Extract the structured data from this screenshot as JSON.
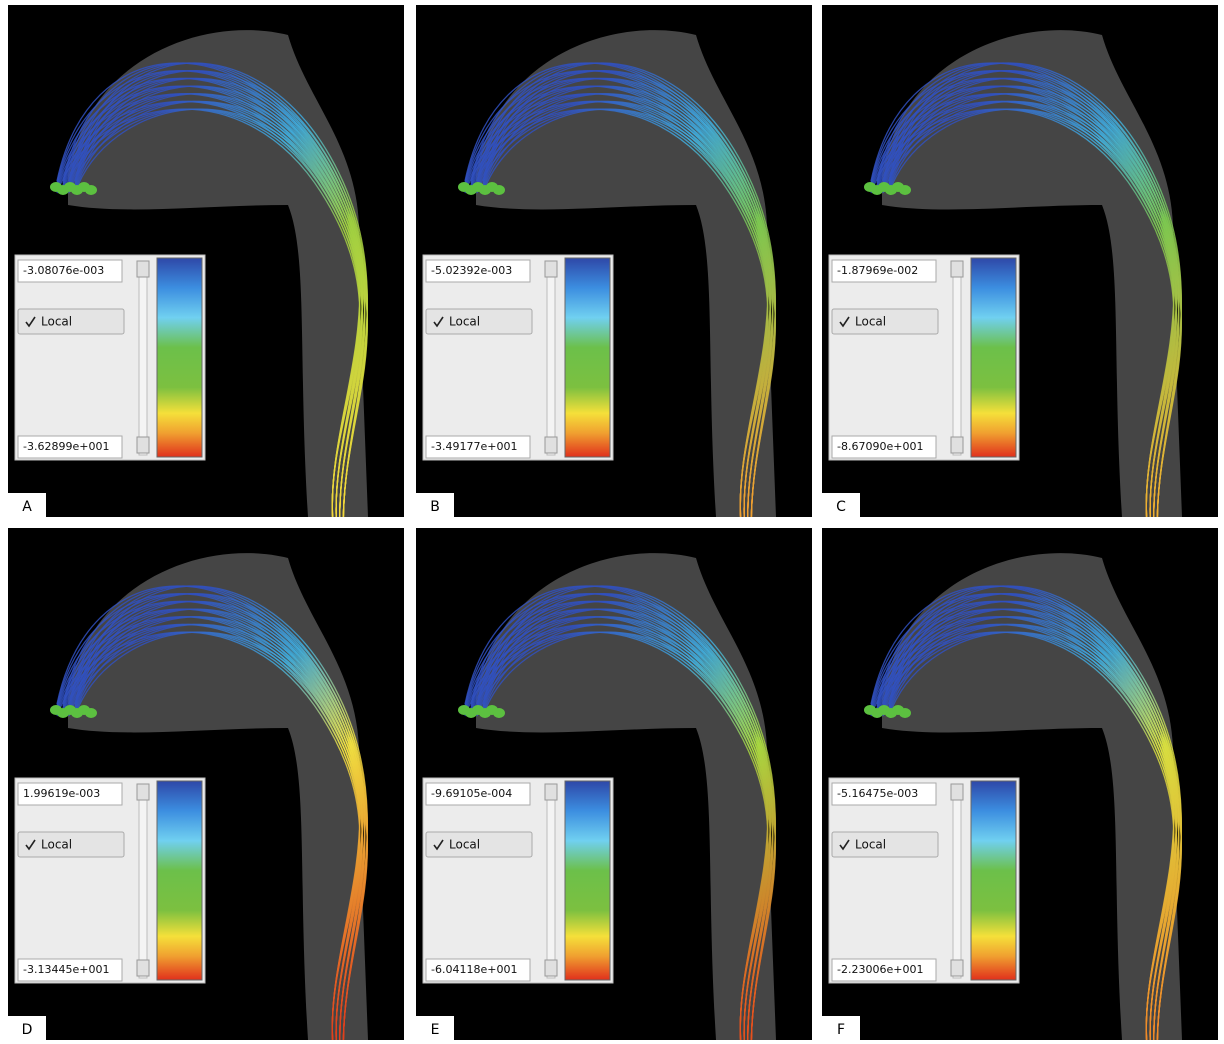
{
  "panels": [
    {
      "label": "A",
      "max": "-3.08076e-003",
      "min": "-3.62899e+001",
      "checkbox": "Local"
    },
    {
      "label": "B",
      "max": "-5.02392e-003",
      "min": "-3.49177e+001",
      "checkbox": "Local"
    },
    {
      "label": "C",
      "max": "-1.87969e-002",
      "min": "-8.67090e+001",
      "checkbox": "Local"
    },
    {
      "label": "D",
      "max": "1.99619e-003",
      "min": "-3.13445e+001",
      "checkbox": "Local"
    },
    {
      "label": "E",
      "max": "-9.69105e-004",
      "min": "-6.04118e+001",
      "checkbox": "Local"
    },
    {
      "label": "F",
      "max": "-5.16475e-003",
      "min": "-2.23006e+001",
      "checkbox": "Local"
    }
  ]
}
